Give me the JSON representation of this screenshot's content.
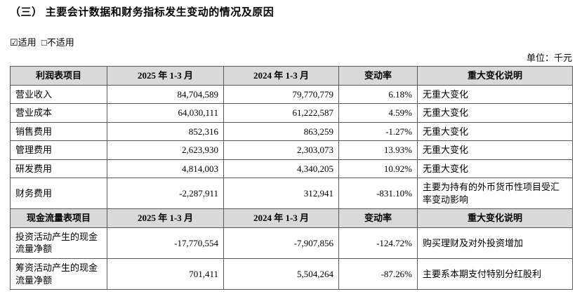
{
  "title": "（三） 主要会计数据和财务指标发生变动的情况及原因",
  "applicability": {
    "applicable": "☑适用",
    "not_applicable": "□不适用"
  },
  "unit": "单位：千元",
  "table": {
    "header_profit": {
      "item": "利润表项目",
      "p2025": "2025 年 1-3 月",
      "p2024": "2024 年 1-3 月",
      "change": "变动率",
      "note": "重大变化说明"
    },
    "profit_rows": [
      {
        "item": "营业收入",
        "v2025": "84,704,589",
        "v2024": "79,770,779",
        "change": "6.18%",
        "note": "无重大变化"
      },
      {
        "item": "营业成本",
        "v2025": "64,030,111",
        "v2024": "61,222,587",
        "change": "4.59%",
        "note": "无重大变化"
      },
      {
        "item": "销售费用",
        "v2025": "852,316",
        "v2024": "863,259",
        "change": "-1.27%",
        "note": "无重大变化"
      },
      {
        "item": "管理费用",
        "v2025": "2,623,930",
        "v2024": "2,303,073",
        "change": "13.93%",
        "note": "无重大变化"
      },
      {
        "item": "研发费用",
        "v2025": "4,814,003",
        "v2024": "4,340,205",
        "change": "10.92%",
        "note": "无重大变化"
      },
      {
        "item": "财务费用",
        "v2025": "-2,287,911",
        "v2024": "312,941",
        "change": "-831.10%",
        "note": "主要为持有的外币货币性项目受汇率变动影响"
      }
    ],
    "header_cash": {
      "item": "现金流量表项目",
      "p2025": "2025 年 1-3 月",
      "p2024": "2024 年 1-3 月",
      "change": "变动率",
      "note": "重大变化说明"
    },
    "cash_rows": [
      {
        "item": "投资活动产生的现金流量净额",
        "v2025": "-17,770,554",
        "v2024": "-7,907,856",
        "change": "-124.72%",
        "note": "购买理财及对外投资增加"
      },
      {
        "item": "筹资活动产生的现金流量净额",
        "v2025": "701,411",
        "v2024": "5,504,264",
        "change": "-87.26%",
        "note": "主要系本期支付特别分红股利"
      }
    ]
  }
}
